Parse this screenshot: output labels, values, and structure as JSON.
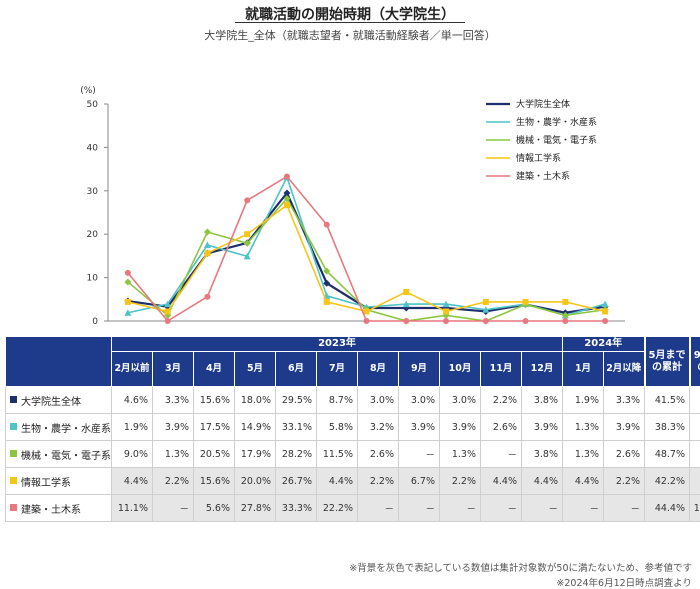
{
  "title": "就職活動の開始時期（大学院生）",
  "subtitle": "大学院生_全体（就職志望者・就職活動経験者／単一回答）",
  "chart_data": {
    "type": "line",
    "ylabel": "(%)",
    "ylim": [
      0,
      50
    ],
    "yticks": [
      "0",
      "10",
      "20",
      "30",
      "40",
      "50"
    ],
    "categories": [
      "2月以前",
      "3月",
      "4月",
      "5月",
      "6月",
      "7月",
      "8月",
      "9月",
      "10月",
      "11月",
      "12月",
      "1月",
      "2月以降"
    ],
    "legend_position": "top-right",
    "grid": false,
    "series": [
      {
        "name": "大学院生全体",
        "color": "#1e2f6e",
        "marker": "diamond",
        "values": [
          4.6,
          3.3,
          15.6,
          18.0,
          29.5,
          8.7,
          3.0,
          3.0,
          3.0,
          2.2,
          3.8,
          1.9,
          3.3
        ]
      },
      {
        "name": "生物・農学・水産系",
        "color": "#4fc3c7",
        "marker": "triangle",
        "values": [
          1.9,
          3.9,
          17.5,
          14.9,
          33.1,
          5.8,
          3.2,
          3.9,
          3.9,
          2.6,
          3.9,
          1.3,
          3.9
        ]
      },
      {
        "name": "機械・電気・電子系",
        "color": "#8cc63f",
        "marker": "diamond",
        "values": [
          9.0,
          1.3,
          20.5,
          17.9,
          28.2,
          11.5,
          2.6,
          0,
          1.3,
          0,
          3.8,
          1.3,
          2.6
        ]
      },
      {
        "name": "情報工学系",
        "color": "#f5c518",
        "marker": "square",
        "values": [
          4.4,
          2.2,
          15.6,
          20.0,
          26.7,
          4.4,
          2.2,
          6.7,
          2.2,
          4.4,
          4.4,
          4.4,
          2.2
        ]
      },
      {
        "name": "建築・土木系",
        "color": "#e8777f",
        "marker": "circle",
        "values": [
          11.1,
          0,
          5.6,
          27.8,
          33.3,
          22.2,
          0,
          0,
          0,
          0,
          0,
          0,
          0
        ]
      }
    ]
  },
  "table": {
    "year_2023": "2023年",
    "year_2024": "2024年",
    "month_headers_2023": [
      "2月以前",
      "3月",
      "4月",
      "5月",
      "6月",
      "7月",
      "8月",
      "9月",
      "10月",
      "11月",
      "12月"
    ],
    "month_headers_2024": [
      "1月",
      "2月以降"
    ],
    "summary_headers": [
      "5月までの累計",
      "9月までの累計"
    ],
    "rows": [
      {
        "label": "大学院生全体",
        "color": "#1e2f6e",
        "shaded": false,
        "values": [
          "4.6%",
          "3.3%",
          "15.6%",
          "18.0%",
          "29.5%",
          "8.7%",
          "3.0%",
          "3.0%",
          "3.0%",
          "2.2%",
          "3.8%",
          "1.9%",
          "3.3%"
        ],
        "summary": [
          "41.5%",
          "85.8%"
        ]
      },
      {
        "label": "生物・農学・水産系",
        "color": "#4fc3c7",
        "shaded": false,
        "values": [
          "1.9%",
          "3.9%",
          "17.5%",
          "14.9%",
          "33.1%",
          "5.8%",
          "3.2%",
          "3.9%",
          "3.9%",
          "2.6%",
          "3.9%",
          "1.3%",
          "3.9%"
        ],
        "summary": [
          "38.3%",
          "84.4%"
        ]
      },
      {
        "label": "機械・電気・電子系",
        "color": "#8cc63f",
        "shaded": false,
        "values": [
          "9.0%",
          "1.3%",
          "20.5%",
          "17.9%",
          "28.2%",
          "11.5%",
          "2.6%",
          "－",
          "1.3%",
          "－",
          "3.8%",
          "1.3%",
          "2.6%"
        ],
        "summary": [
          "48.7%",
          "91.0%"
        ]
      },
      {
        "label": "情報工学系",
        "color": "#f5c518",
        "shaded": true,
        "values": [
          "4.4%",
          "2.2%",
          "15.6%",
          "20.0%",
          "26.7%",
          "4.4%",
          "2.2%",
          "6.7%",
          "2.2%",
          "4.4%",
          "4.4%",
          "4.4%",
          "2.2%"
        ],
        "summary": [
          "42.2%",
          "82.2%"
        ]
      },
      {
        "label": "建築・土木系",
        "color": "#e8777f",
        "shaded": true,
        "values": [
          "11.1%",
          "－",
          "5.6%",
          "27.8%",
          "33.3%",
          "22.2%",
          "－",
          "－",
          "－",
          "－",
          "－",
          "－",
          "－"
        ],
        "summary": [
          "44.4%",
          "100.0%"
        ]
      }
    ]
  },
  "footnotes": [
    "※背景を灰色で表記している数値は集計対象数が50に満たないため、参考値です",
    "※2024年6月12日時点調査より"
  ]
}
